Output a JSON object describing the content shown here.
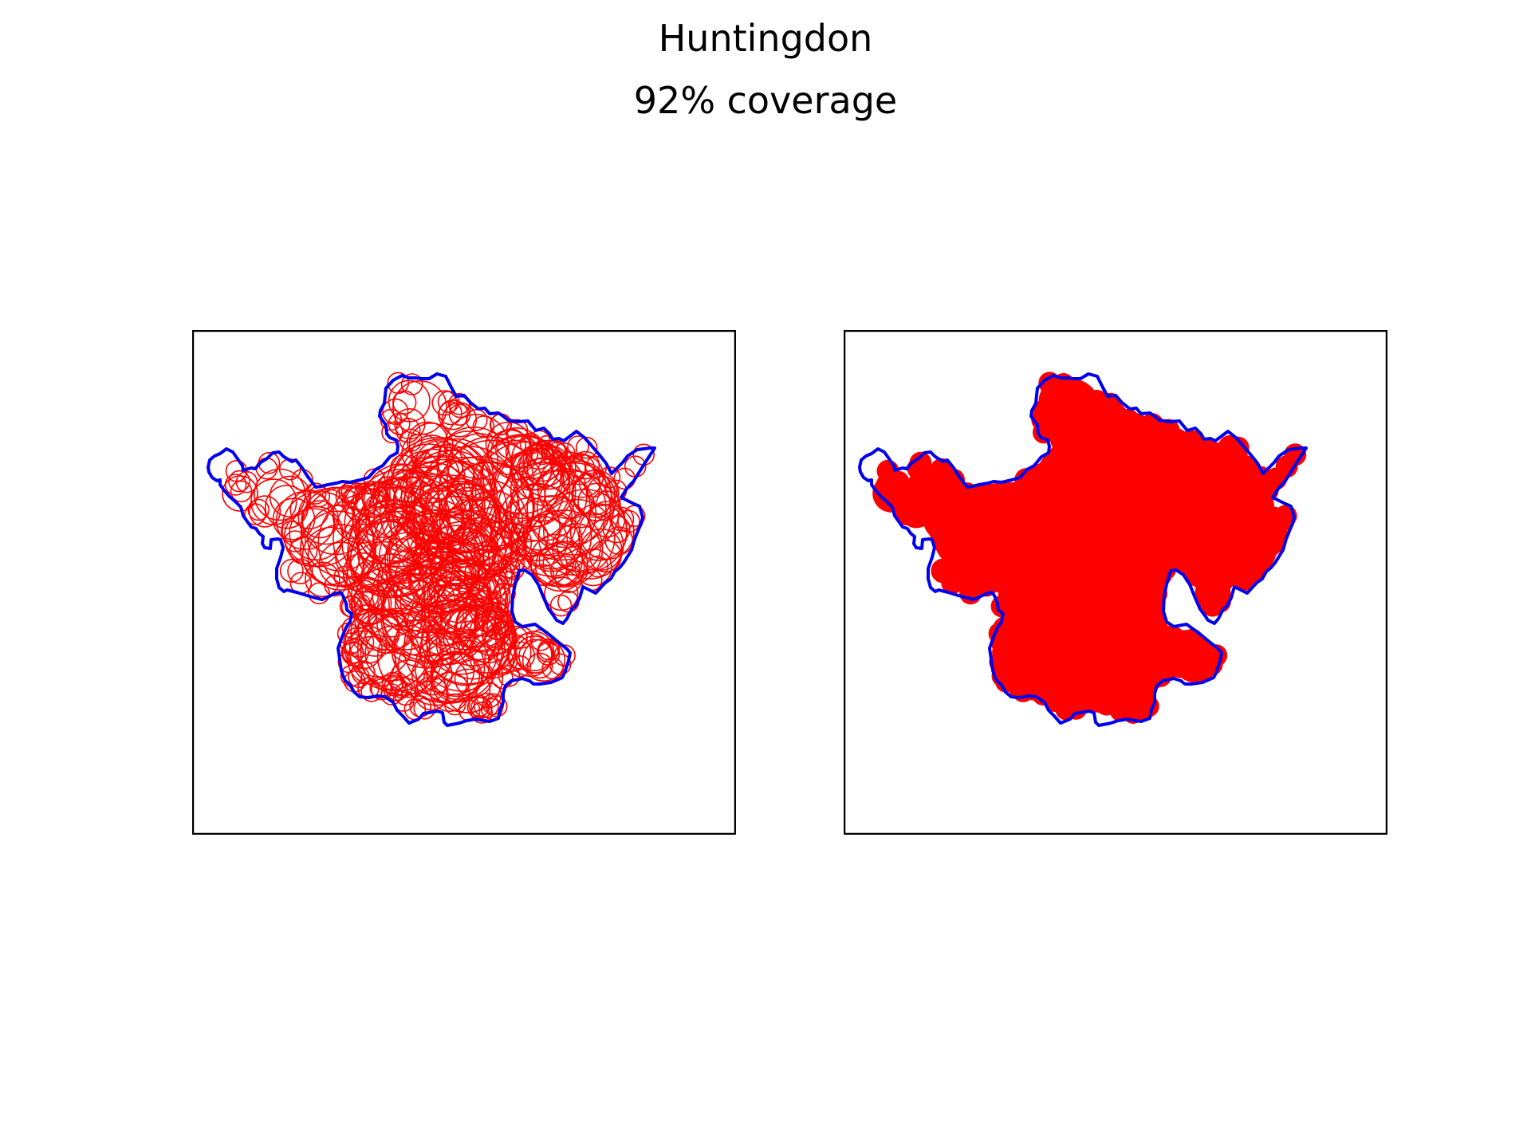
{
  "title": "Huntingdon",
  "subtitle": "92% coverage",
  "colors": {
    "boundary": "#0000ee",
    "coverage": "#ff0000",
    "frame": "#000000",
    "background": "#ffffff"
  },
  "panels": [
    {
      "id": "circles",
      "style": "outline"
    },
    {
      "id": "filled",
      "style": "filled"
    }
  ]
}
